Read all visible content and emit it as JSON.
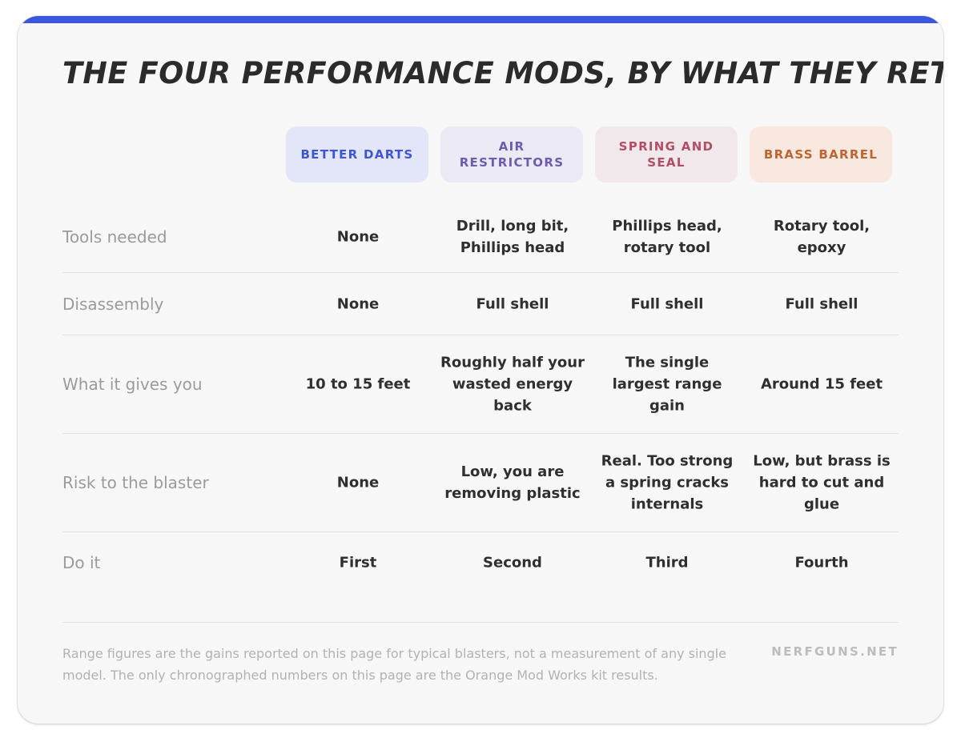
{
  "title": "THE FOUR PERFORMANCE MODS, BY WHAT THEY RETURN",
  "colors": {
    "accent_bar": "#3d56e0",
    "better_darts": "#3d56d6",
    "air_restrictors": "#6c5dad",
    "spring_and_seal": "#b24f66",
    "brass_barrel": "#bd6632"
  },
  "columns": [
    "BETTER DARTS",
    "AIR RESTRICTORS",
    "SPRING AND SEAL",
    "BRASS BARREL"
  ],
  "rows": [
    {
      "label": "Tools needed",
      "values": [
        "None",
        "Drill, long bit, Phillips head",
        "Phillips head, rotary tool",
        "Rotary tool, epoxy"
      ]
    },
    {
      "label": "Disassembly",
      "values": [
        "None",
        "Full shell",
        "Full shell",
        "Full shell"
      ]
    },
    {
      "label": "What it gives you",
      "values": [
        "10 to 15 feet",
        "Roughly half your wasted energy back",
        "The single largest range gain",
        "Around 15 feet"
      ]
    },
    {
      "label": "Risk to the blaster",
      "values": [
        "None",
        "Low, you are removing plastic",
        "Real. Too strong a spring cracks internals",
        "Low, but brass is hard to cut and glue"
      ]
    },
    {
      "label": "Do it",
      "values": [
        "First",
        "Second",
        "Third",
        "Fourth"
      ]
    }
  ],
  "footnote": "Range figures are the gains reported on this page for typical blasters, not a measurement of any single model. The only chronographed numbers on this page are the Orange Mod Works kit results.",
  "brand": "NERFGUNS.NET"
}
